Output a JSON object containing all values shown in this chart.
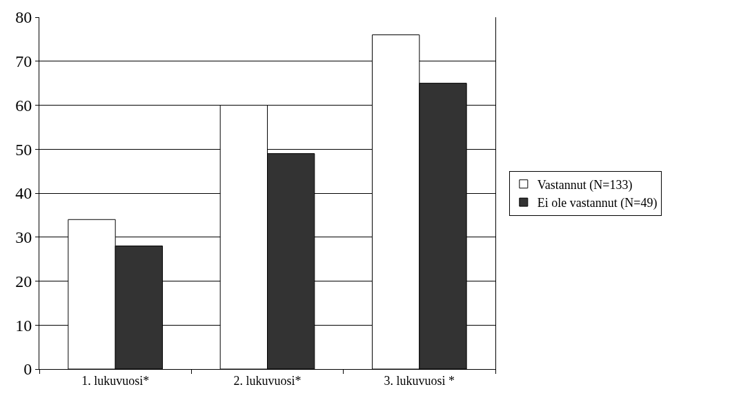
{
  "chart_data": {
    "type": "bar",
    "categories": [
      "1. lukuvuosi*",
      "2. lukuvuosi*",
      "3. lukuvuosi *"
    ],
    "series": [
      {
        "name": "Vastannut (N=133)",
        "color": "#ffffff",
        "values": [
          34,
          60,
          76
        ]
      },
      {
        "name": "Ei ole vastannut (N=49)",
        "color": "#333333",
        "values": [
          28,
          49,
          65
        ]
      }
    ],
    "ylim": [
      0,
      80
    ],
    "yticks": [
      0,
      10,
      20,
      30,
      40,
      50,
      60,
      70,
      80
    ],
    "grid": "y",
    "legend": "right"
  }
}
